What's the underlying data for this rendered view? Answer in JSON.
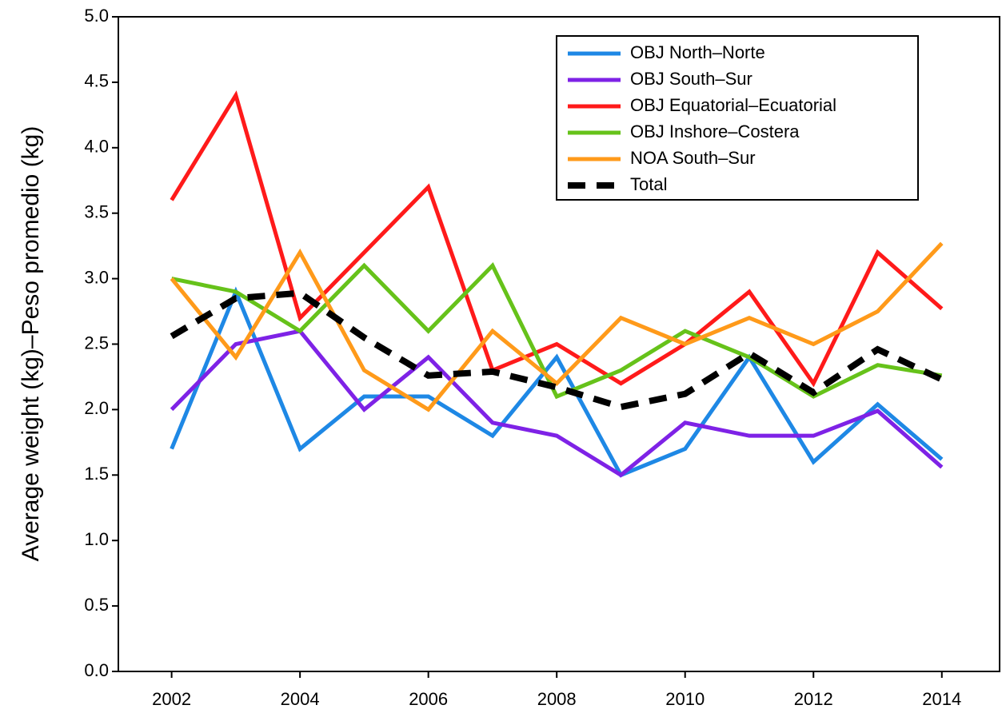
{
  "chart_data": {
    "type": "line",
    "y_label": "Average weight (kg)–Peso promedio (kg)",
    "x": [
      2002,
      2003,
      2004,
      2005,
      2006,
      2007,
      2008,
      2009,
      2010,
      2011,
      2012,
      2013,
      2014
    ],
    "xlim": [
      2001.17,
      2014.9
    ],
    "xticks": [
      2002,
      2004,
      2006,
      2008,
      2010,
      2012,
      2014
    ],
    "ylim": [
      0,
      5
    ],
    "yticks": [
      {
        "value": 0,
        "label": "0.0"
      },
      0.5,
      {
        "value": 1,
        "label": "1.0"
      },
      1.5,
      {
        "value": 2,
        "label": "2.0"
      },
      2.5,
      {
        "value": 3,
        "label": "3.0"
      },
      3.5,
      {
        "value": 4,
        "label": "4.0"
      },
      4.5,
      {
        "value": 5,
        "label": "5.0"
      }
    ],
    "legend_position": "top-right",
    "series": [
      {
        "name": "OBJ North–Norte",
        "color": "#1e88e5",
        "style": "solid",
        "values": [
          1.7,
          2.9,
          1.7,
          2.1,
          2.1,
          1.8,
          2.4,
          1.5,
          1.7,
          2.4,
          1.6,
          2.04,
          1.62
        ]
      },
      {
        "name": "OBJ South–Sur",
        "color": "#7e22e6",
        "style": "solid",
        "values": [
          2.0,
          2.5,
          2.6,
          2.0,
          2.4,
          1.9,
          1.8,
          1.5,
          1.9,
          1.8,
          1.8,
          1.99,
          1.56
        ]
      },
      {
        "name": "OBJ Equatorial–Ecuatorial",
        "color": "#ff1a1a",
        "style": "solid",
        "values": [
          3.6,
          4.4,
          2.7,
          3.2,
          3.7,
          2.3,
          2.5,
          2.2,
          2.5,
          2.9,
          2.2,
          3.2,
          2.77
        ]
      },
      {
        "name": "OBJ Inshore–Costera",
        "color": "#66c21a",
        "style": "solid",
        "values": [
          3.0,
          2.9,
          2.6,
          3.1,
          2.6,
          3.1,
          2.1,
          2.3,
          2.6,
          2.4,
          2.1,
          2.34,
          2.26
        ]
      },
      {
        "name": "NOA South–Sur",
        "color": "#ff9a1a",
        "style": "solid",
        "values": [
          3.0,
          2.4,
          3.2,
          2.3,
          2.0,
          2.6,
          2.2,
          2.7,
          2.5,
          2.7,
          2.5,
          2.75,
          3.27
        ]
      },
      {
        "name": "Total",
        "color": "#000000",
        "style": "dashed",
        "values": [
          2.56,
          2.85,
          2.89,
          2.55,
          2.26,
          2.29,
          2.17,
          2.02,
          2.12,
          2.43,
          2.13,
          2.46,
          2.23
        ]
      }
    ]
  }
}
